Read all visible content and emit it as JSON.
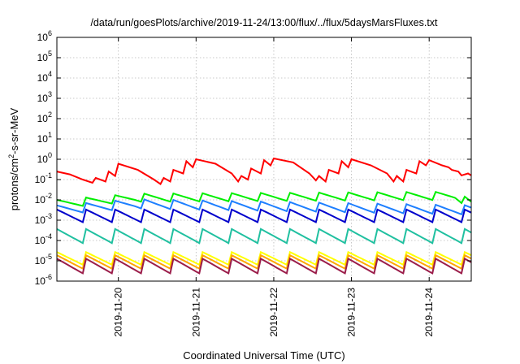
{
  "chart_data": {
    "type": "line",
    "title": "/data/run/goesPlots/archive/2019-11-24/13:00/flux/../flux/5daysMarsFluxes.txt",
    "xlabel": "Coordinated Universal Time (UTC)",
    "ylabel_parts": [
      "protons/cm",
      "2",
      "-s-sr-MeV"
    ],
    "y_scale": "log",
    "ylim": [
      1e-06,
      1000000.0
    ],
    "xlim": [
      "2019-11-19T05:00",
      "2019-11-24T13:00"
    ],
    "grid": true,
    "y_ticks": [
      {
        "base": "10",
        "exp": "-6",
        "value": 1e-06
      },
      {
        "base": "10",
        "exp": "-5",
        "value": 1e-05
      },
      {
        "base": "10",
        "exp": "-4",
        "value": 0.0001
      },
      {
        "base": "10",
        "exp": "-3",
        "value": 0.001
      },
      {
        "base": "10",
        "exp": "-2",
        "value": 0.01
      },
      {
        "base": "10",
        "exp": "-1",
        "value": 0.1
      },
      {
        "base": "10",
        "exp": "0",
        "value": 1
      },
      {
        "base": "10",
        "exp": "1",
        "value": 10.0
      },
      {
        "base": "10",
        "exp": "2",
        "value": 100.0
      },
      {
        "base": "10",
        "exp": "3",
        "value": 1000.0
      },
      {
        "base": "10",
        "exp": "4",
        "value": 10000.0
      },
      {
        "base": "10",
        "exp": "5",
        "value": 100000.0
      },
      {
        "base": "10",
        "exp": "6",
        "value": 1000000.0
      }
    ],
    "x_ticks": [
      {
        "label": "2019-11-20",
        "x": "2019-11-20T00:00"
      },
      {
        "label": "2019-11-21",
        "x": "2019-11-21T00:00"
      },
      {
        "label": "2019-11-22",
        "x": "2019-11-22T00:00"
      },
      {
        "label": "2019-11-23",
        "x": "2019-11-23T00:00"
      },
      {
        "label": "2019-11-24",
        "x": "2019-11-24T00:00"
      }
    ],
    "series": [
      {
        "color": "#ff0000",
        "x": [
          "2019-11-19T05:00",
          "2019-11-19T09:00",
          "2019-11-19T13:00",
          "2019-11-19T16:00",
          "2019-11-19T17:00",
          "2019-11-19T20:00",
          "2019-11-19T21:00",
          "2019-11-19T23:00",
          "2019-11-20T00:00",
          "2019-11-20T06:00",
          "2019-11-20T11:00",
          "2019-11-20T13:00",
          "2019-11-20T14:00",
          "2019-11-20T16:00",
          "2019-11-20T17:00",
          "2019-11-20T20:00",
          "2019-11-20T21:00",
          "2019-11-20T23:00",
          "2019-11-21T00:00",
          "2019-11-21T06:00",
          "2019-11-21T11:00",
          "2019-11-21T13:00",
          "2019-11-21T14:00",
          "2019-11-21T16:00",
          "2019-11-21T17:00",
          "2019-11-21T20:00",
          "2019-11-21T21:00",
          "2019-11-21T23:00",
          "2019-11-22T00:00",
          "2019-11-22T06:00",
          "2019-11-22T11:00",
          "2019-11-22T13:00",
          "2019-11-22T14:00",
          "2019-11-22T16:00",
          "2019-11-22T17:00",
          "2019-11-22T20:00",
          "2019-11-22T21:00",
          "2019-11-22T23:00",
          "2019-11-23T00:00",
          "2019-11-23T06:00",
          "2019-11-23T11:00",
          "2019-11-23T13:00",
          "2019-11-23T14:00",
          "2019-11-23T16:00",
          "2019-11-23T17:00",
          "2019-11-23T20:00",
          "2019-11-23T21:00",
          "2019-11-23T23:00",
          "2019-11-24T00:00",
          "2019-11-24T04:00",
          "2019-11-24T06:00",
          "2019-11-24T07:00",
          "2019-11-24T09:00",
          "2019-11-24T10:00",
          "2019-11-24T12:00",
          "2019-11-24T13:00"
        ],
        "y": [
          0.25,
          0.18,
          0.1,
          0.07,
          0.12,
          0.08,
          0.25,
          0.15,
          0.6,
          0.3,
          0.1,
          0.06,
          0.12,
          0.08,
          0.3,
          0.2,
          0.8,
          0.4,
          1.0,
          0.6,
          0.2,
          0.08,
          0.15,
          0.1,
          0.35,
          0.2,
          0.9,
          0.5,
          1.1,
          0.7,
          0.2,
          0.09,
          0.15,
          0.08,
          0.3,
          0.2,
          0.8,
          0.4,
          1.0,
          0.5,
          0.2,
          0.08,
          0.15,
          0.08,
          0.3,
          0.2,
          0.8,
          0.5,
          0.9,
          0.5,
          0.4,
          0.3,
          0.25,
          0.16,
          0.2,
          0.16
        ]
      },
      {
        "color": "#00ee00",
        "x": [
          "2019-11-19T05:00",
          "2019-11-20T05:00",
          "2019-11-24T08:00",
          "2019-11-24T13:00"
        ],
        "y": [
          0.006,
          0.012,
          0.015,
          0.006
        ],
        "amp": 2.8
      },
      {
        "color": "#1e7fff",
        "x": [
          "2019-11-19T05:00",
          "2019-11-20T05:00",
          "2019-11-24T13:00"
        ],
        "y": [
          0.003,
          0.006,
          0.003
        ],
        "amp": 3.2
      },
      {
        "color": "#0000cc",
        "x": [
          "2019-11-19T05:00",
          "2019-11-24T13:00"
        ],
        "y": [
          0.0015,
          0.0015
        ],
        "amp": 5.0
      },
      {
        "color": "#20c0a0",
        "x": [
          "2019-11-19T05:00",
          "2019-11-24T13:00"
        ],
        "y": [
          0.00015,
          0.00015
        ],
        "amp": 6.0
      },
      {
        "color": "#ffff00",
        "x": [
          "2019-11-19T05:00",
          "2019-11-24T13:00"
        ],
        "y": [
          1.2e-05,
          1.2e-05
        ],
        "amp": 5.0
      },
      {
        "color": "#ffa500",
        "x": [
          "2019-11-19T05:00",
          "2019-11-24T13:00"
        ],
        "y": [
          8e-06,
          8e-06
        ],
        "amp": 5.5
      },
      {
        "color": "#9b1d4a",
        "x": [
          "2019-11-19T05:00",
          "2019-11-24T13:00"
        ],
        "y": [
          5e-06,
          5e-06
        ],
        "amp": 6.5
      }
    ]
  }
}
